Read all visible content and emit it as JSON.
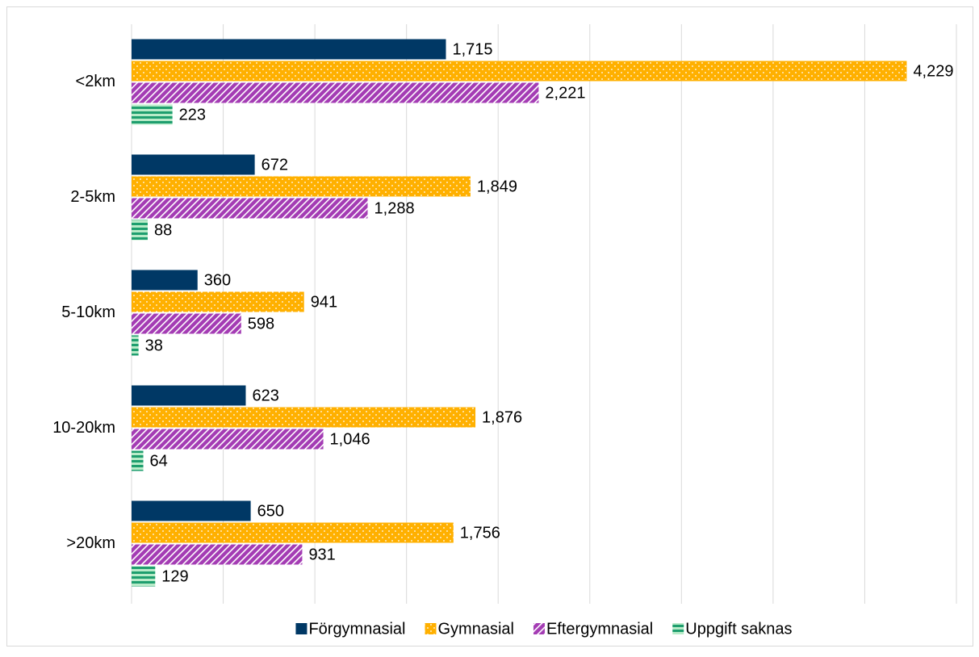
{
  "chart_data": {
    "type": "hbar",
    "categories": [
      "<2km",
      "2-5km",
      "5-10km",
      "10-20km",
      ">20km"
    ],
    "series": [
      {
        "name": "Förgymnasial",
        "color": "#003865",
        "pattern": "solid",
        "values": [
          1715,
          672,
          360,
          623,
          650
        ],
        "value_labels": [
          "1,715",
          "672",
          "360",
          "623",
          "650"
        ]
      },
      {
        "name": "Gymnasial",
        "color": "#ffb000",
        "pattern": "dots",
        "values": [
          4229,
          1849,
          941,
          1876,
          1756
        ],
        "value_labels": [
          "4,229",
          "1,849",
          "941",
          "1,876",
          "1,756"
        ]
      },
      {
        "name": "Eftergymnasial",
        "color": "#a43cb4",
        "pattern": "diagonal",
        "values": [
          2221,
          1288,
          598,
          1046,
          931
        ],
        "value_labels": [
          "2,221",
          "1,288",
          "598",
          "1,046",
          "931"
        ]
      },
      {
        "name": "Uppgift saknas",
        "color": "#1e9e6e",
        "pattern": "stripes",
        "values": [
          223,
          88,
          38,
          64,
          129
        ],
        "value_labels": [
          "223",
          "88",
          "38",
          "64",
          "129"
        ]
      }
    ],
    "xlim": [
      0,
      4500
    ],
    "xticks": [
      0,
      500,
      1000,
      1500,
      2000,
      2500,
      3000,
      3500,
      4000,
      4500
    ],
    "xtick_labels": false,
    "grid": true,
    "legend": "bottom"
  }
}
